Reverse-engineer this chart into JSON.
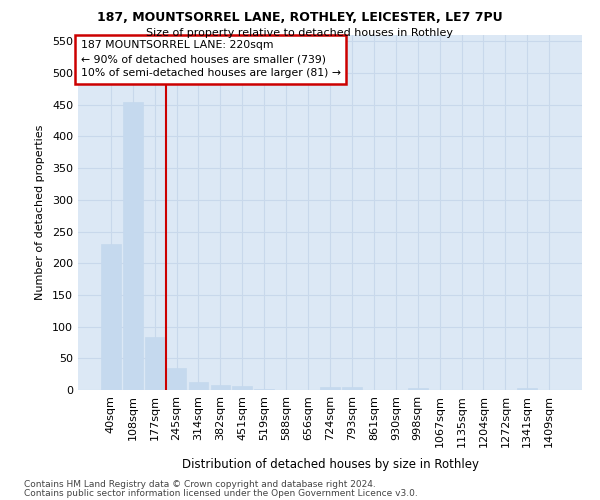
{
  "title1": "187, MOUNTSORREL LANE, ROTHLEY, LEICESTER, LE7 7PU",
  "title2": "Size of property relative to detached houses in Rothley",
  "xlabel": "Distribution of detached houses by size in Rothley",
  "ylabel": "Number of detached properties",
  "categories": [
    "40sqm",
    "108sqm",
    "177sqm",
    "245sqm",
    "314sqm",
    "382sqm",
    "451sqm",
    "519sqm",
    "588sqm",
    "656sqm",
    "724sqm",
    "793sqm",
    "861sqm",
    "930sqm",
    "998sqm",
    "1067sqm",
    "1135sqm",
    "1204sqm",
    "1272sqm",
    "1341sqm",
    "1409sqm"
  ],
  "values": [
    230,
    455,
    83,
    35,
    13,
    8,
    6,
    2,
    0,
    0,
    4,
    4,
    0,
    0,
    3,
    0,
    0,
    0,
    0,
    3,
    0
  ],
  "bar_color": "#c5d9ee",
  "bar_edge_color": "#c5d9ee",
  "vline_x": 2.5,
  "vline_color": "#cc0000",
  "annotation_text": "187 MOUNTSORREL LANE: 220sqm\n← 90% of detached houses are smaller (739)\n10% of semi-detached houses are larger (81) →",
  "annotation_box_color": "#cc0000",
  "ylim": [
    0,
    560
  ],
  "yticks": [
    0,
    50,
    100,
    150,
    200,
    250,
    300,
    350,
    400,
    450,
    500,
    550
  ],
  "background_color": "#dce8f5",
  "grid_color": "#c8d8eb",
  "fig_background": "#ffffff",
  "footer1": "Contains HM Land Registry data © Crown copyright and database right 2024.",
  "footer2": "Contains public sector information licensed under the Open Government Licence v3.0."
}
